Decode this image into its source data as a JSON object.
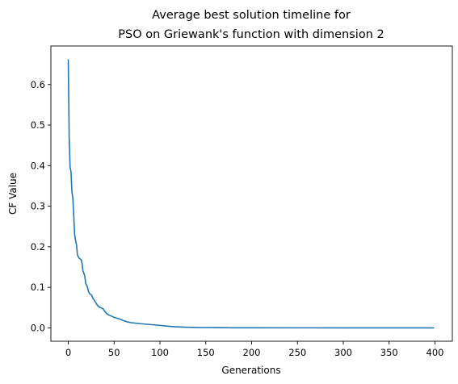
{
  "chart_data": {
    "type": "line",
    "title_lines": [
      "Average best solution timeline for",
      "PSO on Griewank's function with dimension 2"
    ],
    "xlabel": "Generations",
    "ylabel": "CF Value",
    "xlim": [
      -18.95,
      418.95
    ],
    "ylim": [
      -0.033,
      0.695
    ],
    "x_ticks": [
      0,
      50,
      100,
      150,
      200,
      250,
      300,
      350,
      400
    ],
    "x_tick_labels": [
      "0",
      "50",
      "100",
      "150",
      "200",
      "250",
      "300",
      "350",
      "400"
    ],
    "y_ticks": [
      0.0,
      0.1,
      0.2,
      0.3,
      0.4,
      0.5,
      0.6
    ],
    "y_tick_labels": [
      "0.0",
      "0.1",
      "0.2",
      "0.3",
      "0.4",
      "0.5",
      "0.6"
    ],
    "grid": false,
    "series": [
      {
        "color": "#1f77b4",
        "x": [
          0,
          1,
          2,
          3,
          4,
          5,
          6,
          7,
          8,
          9,
          10,
          11,
          12,
          13,
          14,
          15,
          16,
          17,
          18,
          19,
          20,
          21,
          22,
          23,
          24,
          25,
          26,
          27,
          28,
          30,
          32,
          34,
          36,
          38,
          40,
          42,
          44,
          46,
          48,
          50,
          53,
          56,
          60,
          64,
          68,
          72,
          76,
          80,
          85,
          90,
          95,
          100,
          105,
          110,
          115,
          120,
          125,
          130,
          135,
          140,
          150,
          160,
          170,
          175,
          180,
          200,
          250,
          300,
          350,
          399
        ],
        "y": [
          0.662,
          0.47,
          0.395,
          0.385,
          0.335,
          0.32,
          0.275,
          0.23,
          0.215,
          0.205,
          0.18,
          0.175,
          0.172,
          0.17,
          0.168,
          0.16,
          0.14,
          0.135,
          0.128,
          0.11,
          0.105,
          0.1,
          0.09,
          0.085,
          0.083,
          0.082,
          0.078,
          0.072,
          0.07,
          0.062,
          0.055,
          0.051,
          0.049,
          0.047,
          0.04,
          0.035,
          0.032,
          0.03,
          0.028,
          0.026,
          0.024,
          0.022,
          0.018,
          0.015,
          0.013,
          0.012,
          0.011,
          0.01,
          0.009,
          0.008,
          0.007,
          0.006,
          0.005,
          0.004,
          0.003,
          0.0025,
          0.002,
          0.0015,
          0.0012,
          0.001,
          0.0008,
          0.0006,
          0.0004,
          0.0003,
          0.0002,
          0.0001,
          5e-05,
          3e-05,
          2e-05,
          1e-05
        ]
      }
    ]
  }
}
